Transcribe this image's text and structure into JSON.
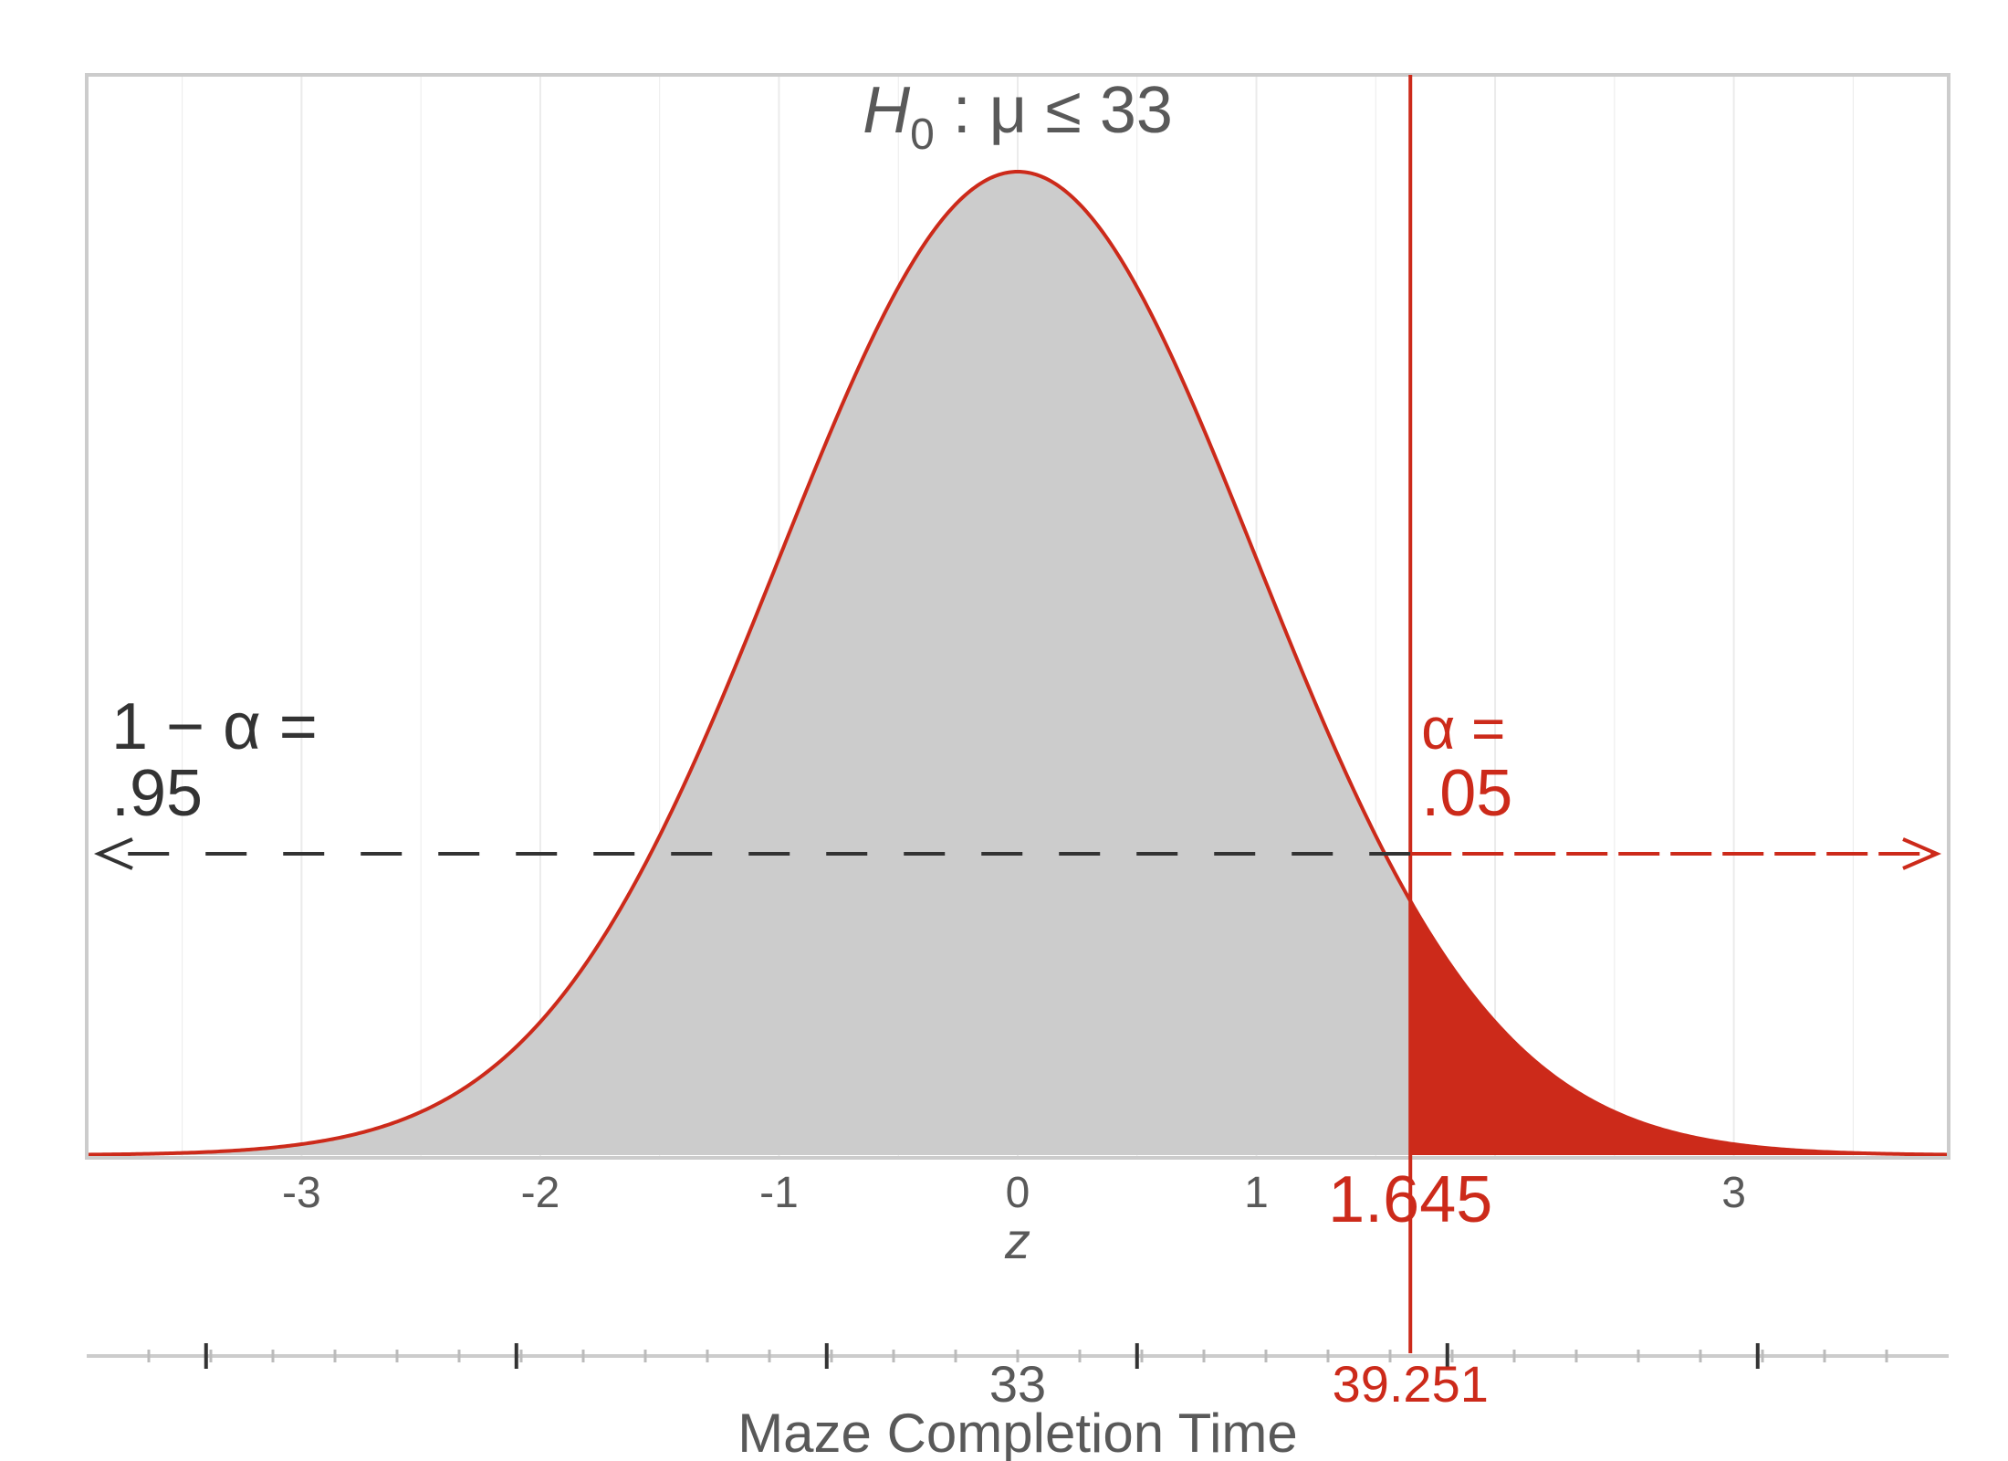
{
  "chart_data": {
    "type": "area",
    "distribution": "standard normal",
    "title": {
      "var": "H",
      "sub": "0",
      "rest": " : μ ≤ 33"
    },
    "xlabel": "z",
    "xlim": [
      -3.9,
      3.9
    ],
    "x_ticks": [
      -3,
      -2,
      -1,
      0,
      1,
      3
    ],
    "x_tick_labels": [
      "-3",
      "-2",
      "-1",
      "0",
      "1",
      "3"
    ],
    "critical_z": 1.645,
    "critical_z_label": "1.645",
    "left_annotation": {
      "line1": "1 − α =",
      "line2": ".95"
    },
    "right_annotation": {
      "line1": "α =",
      "line2": ".05"
    },
    "secondary_axis": {
      "label": "Maze Completion Time",
      "center_value": 33,
      "center_label": "33",
      "critical_value": 39.251,
      "critical_label": "39.251",
      "major_ticks_z": [
        -3.4,
        -2.1,
        -0.8,
        0.5,
        1.8,
        3.1
      ],
      "minor_step_z": 0.26
    },
    "grid": true,
    "colors": {
      "curve": "#cc2a1a",
      "body_fill": "#cccccc",
      "tail_fill": "#cc2a1a",
      "arrow_left": "#333333",
      "arrow_right": "#cc2a1a",
      "axis_text": "#595959",
      "panel_border": "#cccccc",
      "grid": "#ebebeb"
    }
  }
}
